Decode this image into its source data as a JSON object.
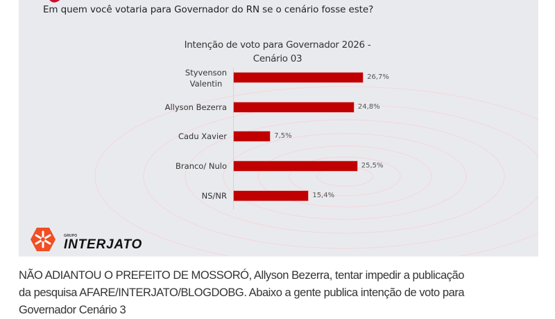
{
  "header": {
    "question": "Em quem você votaria para Governador do RN se o cenário fosse este?"
  },
  "chart": {
    "title_line1": "Intenção de voto para Governador 2026 -",
    "title_line2": "Cenário 03",
    "bar_color": "#c00000"
  },
  "chart_data": {
    "type": "bar",
    "orientation": "horizontal",
    "title": "Intenção de voto para Governador 2026 - Cenário 03",
    "categories": [
      "Styvenson Valentin",
      "Allyson Bezerra",
      "Cadu Xavier",
      "Branco/ Nulo",
      "NS/NR"
    ],
    "values": [
      26.7,
      24.8,
      7.5,
      25.5,
      15.4
    ],
    "value_labels": [
      "26,7%",
      "24,8%",
      "7,5%",
      "25,5%",
      "15,4%"
    ],
    "unit": "%",
    "xlabel": "",
    "ylabel": "",
    "grid": false,
    "legend": null
  },
  "labels": {
    "cat0_line1": "Styvenson",
    "cat0_line2": "Valentin",
    "cat1": "Allyson Bezerra",
    "cat2": "Cadu Xavier",
    "cat3": "Branco/ Nulo",
    "cat4": "NS/NR"
  },
  "logo": {
    "small": "GRUPO",
    "name": "INTERJATO",
    "color": "#f04e23"
  },
  "article": {
    "caption_line1": "NÃO ADIANTOU O PREFEITO DE MOSSORÓ, Allyson Bezerra, tentar impedir a publicação",
    "caption_line2": "da pesquisa AFARE/INTERJATO/BLOGDOBG. Abaixo a gente publica intenção de voto para",
    "caption_line3": "Governador Cenário 3"
  }
}
